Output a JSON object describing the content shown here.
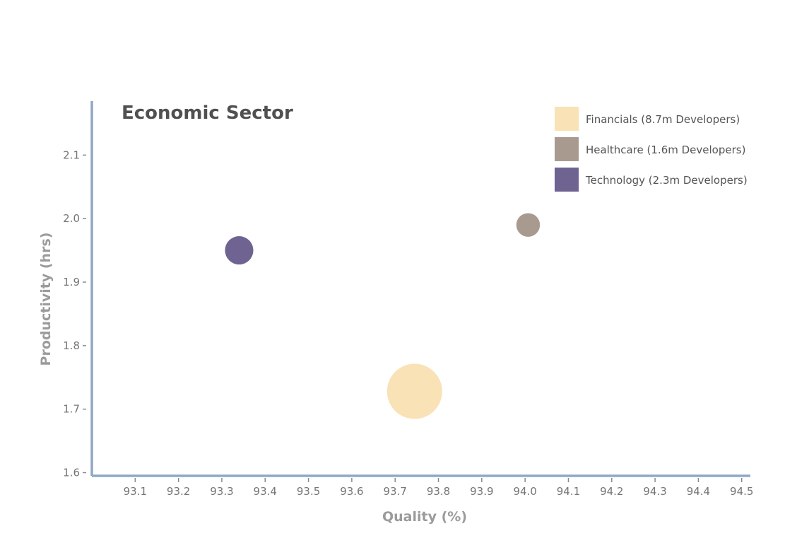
{
  "chart_data": {
    "type": "scatter",
    "title": "Economic Sector",
    "xlabel": "Quality (%)",
    "ylabel": "Productivity (hrs)",
    "xlim": [
      93.0,
      94.52
    ],
    "ylim": [
      1.595,
      2.185
    ],
    "x_ticks": [
      "93.1",
      "93.2",
      "93.3",
      "93.4",
      "93.5",
      "93.6",
      "93.7",
      "93.8",
      "93.9",
      "94.0",
      "94.1",
      "94.2",
      "94.3",
      "94.4",
      "94.5"
    ],
    "y_ticks": [
      "1.6",
      "1.7",
      "1.8",
      "1.9",
      "2.0",
      "2.1"
    ],
    "legend_position": "top-right",
    "grid": false,
    "series": [
      {
        "name": "Financials (8.7m Developers)",
        "x": 93.745,
        "y": 1.728,
        "size": 8.7,
        "color": "#f9e2b6"
      },
      {
        "name": "Healthcare (1.6m Developers)",
        "x": 94.007,
        "y": 1.99,
        "size": 1.6,
        "color": "#a99a90"
      },
      {
        "name": "Technology (2.3m Developers)",
        "x": 93.34,
        "y": 1.95,
        "size": 2.3,
        "color": "#6f6391"
      }
    ],
    "axis_color": "#8fa8c4"
  }
}
